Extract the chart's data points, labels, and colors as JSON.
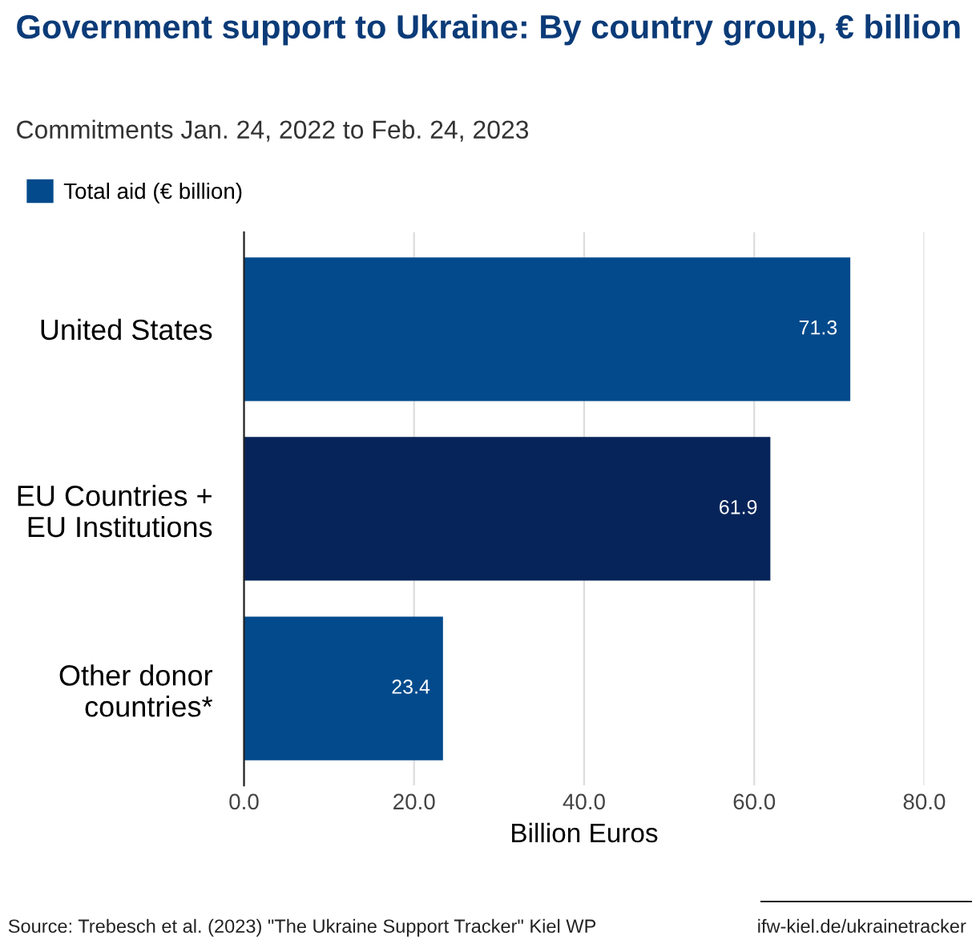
{
  "chart_data": {
    "type": "bar",
    "orientation": "horizontal",
    "title": "Government support to Ukraine: By country group, € billion",
    "subtitle": "Commitments Jan. 24, 2022 to Feb. 24, 2023",
    "categories": [
      "United States",
      "EU Countries +\nEU Institutions",
      "Other donor\ncountries*"
    ],
    "series": [
      {
        "name": "Total aid (€ billion)",
        "color": "#024a8c",
        "colors": [
          "#024a8c",
          "#07245a",
          "#024a8c"
        ],
        "values": [
          71.3,
          61.9,
          23.4
        ]
      }
    ],
    "data_labels": true,
    "xlabel": "Billion Euros",
    "xlim": [
      0,
      80
    ],
    "xticks": [
      {
        "value": 0,
        "label": "0.0"
      },
      {
        "value": 20,
        "label": "20.0"
      },
      {
        "value": 40,
        "label": "40.0"
      },
      {
        "value": 60,
        "label": "60.0"
      },
      {
        "value": 80,
        "label": "80.0"
      }
    ],
    "grid": "x",
    "legend": "top left",
    "annotations": [
      "Source: Trebesch et al. (2023) \"The Ukraine Support Tracker\" Kiel WP",
      "ifw-kiel.de/ukrainetracker"
    ]
  }
}
